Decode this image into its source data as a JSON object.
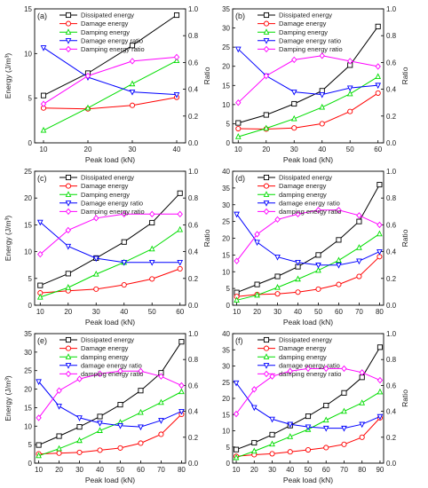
{
  "chart_data": [
    {
      "type": "line",
      "panel_label": "(a)",
      "xlabel": "Peak load (kN)",
      "ylabel": "Energy (J/m³)",
      "y2label": "Ratio",
      "x": [
        10,
        20,
        30,
        40
      ],
      "xlim": [
        8,
        42
      ],
      "xticks": [
        10,
        20,
        30,
        40
      ],
      "ylim": [
        0,
        15
      ],
      "yticks": [
        0,
        5,
        10,
        15
      ],
      "y2lim": [
        0,
        1.0
      ],
      "y2ticks": [
        0.0,
        0.2,
        0.4,
        0.6,
        0.8,
        1.0
      ],
      "legend_position": "top-left",
      "series": [
        {
          "name": "Dissipated energy",
          "color": "#000000",
          "marker": "square",
          "axis": "left",
          "values": [
            5.3,
            7.8,
            10.9,
            14.3
          ]
        },
        {
          "name": "Damage energy",
          "color": "#ff0000",
          "marker": "circle",
          "axis": "left",
          "values": [
            3.9,
            3.8,
            4.2,
            5.1
          ]
        },
        {
          "name": "Damping energy",
          "color": "#00dd00",
          "marker": "triangle-up",
          "axis": "left",
          "values": [
            1.4,
            3.9,
            6.6,
            9.2
          ]
        },
        {
          "name": "Damage energy ratio",
          "color": "#0000ff",
          "marker": "triangle-down",
          "axis": "right",
          "values": [
            0.71,
            0.49,
            0.38,
            0.36
          ]
        },
        {
          "name": "Damping energy ratio",
          "color": "#ff00ff",
          "marker": "diamond",
          "axis": "right",
          "values": [
            0.29,
            0.5,
            0.61,
            0.64
          ]
        }
      ]
    },
    {
      "type": "line",
      "panel_label": "(b)",
      "xlabel": "Peak load (kN)",
      "ylabel": "",
      "y2label": "Ratio",
      "x": [
        10,
        20,
        30,
        40,
        50,
        60
      ],
      "xlim": [
        8,
        62
      ],
      "xticks": [
        10,
        20,
        30,
        40,
        50,
        60
      ],
      "ylim": [
        0,
        35
      ],
      "yticks": [
        0,
        5,
        10,
        15,
        20,
        25,
        30,
        35
      ],
      "y2lim": [
        0,
        1.0
      ],
      "y2ticks": [
        0.0,
        0.2,
        0.4,
        0.6,
        0.8,
        1.0
      ],
      "legend_position": "top-left",
      "series": [
        {
          "name": "Dissipated energy",
          "color": "#000000",
          "marker": "square",
          "axis": "left",
          "values": [
            5.2,
            7.3,
            10.2,
            13.6,
            20.3,
            30.4
          ]
        },
        {
          "name": "Damage energy",
          "color": "#ff0000",
          "marker": "circle",
          "axis": "left",
          "values": [
            3.7,
            3.6,
            3.9,
            5.0,
            8.2,
            13.0
          ]
        },
        {
          "name": "Damping energy",
          "color": "#00dd00",
          "marker": "triangle-up",
          "axis": "left",
          "values": [
            1.6,
            3.8,
            6.3,
            9.3,
            12.8,
            17.3
          ]
        },
        {
          "name": "Damage energy ratio",
          "color": "#0000ff",
          "marker": "triangle-down",
          "axis": "right",
          "values": [
            0.7,
            0.5,
            0.38,
            0.36,
            0.41,
            0.43
          ]
        },
        {
          "name": "Damping energy ratio",
          "color": "#ff00ff",
          "marker": "diamond",
          "axis": "right",
          "values": [
            0.3,
            0.5,
            0.62,
            0.65,
            0.61,
            0.57
          ]
        }
      ]
    },
    {
      "type": "line",
      "panel_label": "(c)",
      "xlabel": "Peak load (kN)",
      "ylabel": "Energy (J/m³)",
      "y2label": "Ratio",
      "x": [
        10,
        20,
        30,
        40,
        50,
        60
      ],
      "xlim": [
        8,
        62
      ],
      "xticks": [
        10,
        20,
        30,
        40,
        50,
        60
      ],
      "ylim": [
        0,
        25
      ],
      "yticks": [
        0,
        5,
        10,
        15,
        20,
        25
      ],
      "y2lim": [
        0,
        1.0
      ],
      "y2ticks": [
        0.0,
        0.2,
        0.4,
        0.6,
        0.8,
        1.0
      ],
      "legend_position": "top-left",
      "series": [
        {
          "name": "Dissipated energy",
          "color": "#000000",
          "marker": "square",
          "axis": "left",
          "values": [
            3.7,
            5.9,
            8.8,
            11.8,
            15.4,
            20.9
          ]
        },
        {
          "name": "Damage energy",
          "color": "#ff0000",
          "marker": "circle",
          "axis": "left",
          "values": [
            2.3,
            2.7,
            3.0,
            3.8,
            4.9,
            6.8
          ]
        },
        {
          "name": "Damping energy",
          "color": "#00dd00",
          "marker": "triangle-up",
          "axis": "left",
          "values": [
            1.5,
            3.3,
            5.8,
            8.0,
            10.5,
            14.1
          ]
        },
        {
          "name": "Damage energy ratio",
          "color": "#0000ff",
          "marker": "triangle-down",
          "axis": "right",
          "values": [
            0.62,
            0.44,
            0.35,
            0.32,
            0.32,
            0.32
          ]
        },
        {
          "name": "Damping energy ratio",
          "color": "#ff00ff",
          "marker": "diamond",
          "axis": "right",
          "values": [
            0.38,
            0.56,
            0.65,
            0.68,
            0.68,
            0.68
          ]
        }
      ]
    },
    {
      "type": "line",
      "panel_label": "(d)",
      "xlabel": "Peak load (kN)",
      "ylabel": "",
      "y2label": "Ratio",
      "x": [
        10,
        20,
        30,
        40,
        50,
        60,
        70,
        80
      ],
      "xlim": [
        8,
        82
      ],
      "xticks": [
        10,
        20,
        30,
        40,
        50,
        60,
        70,
        80
      ],
      "ylim": [
        0,
        40
      ],
      "yticks": [
        0,
        5,
        10,
        15,
        20,
        25,
        30,
        35,
        40
      ],
      "y2lim": [
        0,
        1.0
      ],
      "y2ticks": [
        0.0,
        0.2,
        0.4,
        0.6,
        0.8,
        1.0
      ],
      "legend_position": "top-left",
      "series": [
        {
          "name": "Dissipated energy",
          "color": "#000000",
          "marker": "square",
          "axis": "left",
          "values": [
            3.8,
            6.2,
            8.6,
            11.5,
            15.0,
            19.5,
            25.0,
            36.0
          ]
        },
        {
          "name": "Damage energy",
          "color": "#ff0000",
          "marker": "circle",
          "axis": "left",
          "values": [
            2.6,
            3.2,
            3.4,
            3.9,
            4.8,
            6.2,
            8.6,
            14.5
          ]
        },
        {
          "name": "damping energy",
          "color": "#00dd00",
          "marker": "triangle-up",
          "axis": "left",
          "values": [
            1.5,
            3.0,
            5.3,
            7.8,
            10.4,
            13.4,
            17.2,
            21.3
          ]
        },
        {
          "name": "damage energy ratio",
          "color": "#0000ff",
          "marker": "triangle-down",
          "axis": "right",
          "values": [
            0.68,
            0.47,
            0.36,
            0.32,
            0.3,
            0.3,
            0.33,
            0.4
          ]
        },
        {
          "name": "damping energy ratio",
          "color": "#ff00ff",
          "marker": "diamond",
          "axis": "right",
          "values": [
            0.33,
            0.53,
            0.64,
            0.68,
            0.71,
            0.71,
            0.67,
            0.6
          ]
        }
      ]
    },
    {
      "type": "line",
      "panel_label": "(e)",
      "xlabel": "Peak load (kN)",
      "ylabel": "Energy (J/m³)",
      "y2label": "",
      "x": [
        10,
        20,
        30,
        40,
        50,
        60,
        70,
        80
      ],
      "xlim": [
        8,
        82
      ],
      "xticks": [
        10,
        20,
        30,
        40,
        50,
        60,
        70,
        80
      ],
      "ylim": [
        0,
        35
      ],
      "yticks": [
        0,
        5,
        10,
        15,
        20,
        25,
        30,
        35
      ],
      "y2lim": [
        0,
        1.0
      ],
      "y2ticks": [
        0.0,
        0.2,
        0.4,
        0.6,
        0.8,
        1.0
      ],
      "legend_position": "top-left",
      "series": [
        {
          "name": "Dissipated energy",
          "color": "#000000",
          "marker": "square",
          "axis": "left",
          "values": [
            4.9,
            7.3,
            9.8,
            12.6,
            15.8,
            19.6,
            24.4,
            32.8
          ]
        },
        {
          "name": "Damage energy",
          "color": "#ff0000",
          "marker": "circle",
          "axis": "left",
          "values": [
            2.5,
            2.7,
            2.9,
            3.5,
            4.1,
            5.4,
            7.8,
            13.2
          ]
        },
        {
          "name": "damping energy",
          "color": "#00dd00",
          "marker": "triangle-up",
          "axis": "left",
          "values": [
            2.0,
            3.9,
            6.1,
            8.8,
            11.0,
            13.7,
            16.4,
            19.3
          ]
        },
        {
          "name": "damage energy ratio",
          "color": "#0000ff",
          "marker": "triangle-down",
          "axis": "right",
          "values": [
            0.63,
            0.44,
            0.35,
            0.31,
            0.29,
            0.28,
            0.33,
            0.4
          ]
        },
        {
          "name": "damping energy ratio",
          "color": "#ff00ff",
          "marker": "diamond",
          "axis": "right",
          "values": [
            0.35,
            0.56,
            0.65,
            0.69,
            0.71,
            0.71,
            0.67,
            0.6
          ]
        }
      ]
    },
    {
      "type": "line",
      "panel_label": "(f)",
      "xlabel": "Peak load (kN)",
      "ylabel": "",
      "y2label": "Ratio",
      "x": [
        10,
        20,
        30,
        40,
        50,
        60,
        70,
        80,
        90
      ],
      "xlim": [
        8,
        92
      ],
      "xticks": [
        10,
        20,
        30,
        40,
        50,
        60,
        70,
        80,
        90
      ],
      "ylim": [
        0,
        40
      ],
      "yticks": [
        0,
        5,
        10,
        15,
        20,
        25,
        30,
        35,
        40
      ],
      "y2lim": [
        0,
        1.0
      ],
      "y2ticks": [
        0.0,
        0.2,
        0.4,
        0.6,
        0.8,
        1.0
      ],
      "legend_position": "top-left",
      "series": [
        {
          "name": "Dissipated energy",
          "color": "#000000",
          "marker": "square",
          "axis": "left",
          "values": [
            4.2,
            6.3,
            8.8,
            11.6,
            14.5,
            17.8,
            21.7,
            26.5,
            35.8
          ]
        },
        {
          "name": "Damage energy",
          "color": "#ff0000",
          "marker": "circle",
          "axis": "left",
          "values": [
            2.1,
            2.6,
            2.9,
            3.5,
            4.1,
            4.8,
            5.8,
            8.0,
            14.0
          ]
        },
        {
          "name": "damping energy",
          "color": "#00dd00",
          "marker": "triangle-up",
          "axis": "left",
          "values": [
            1.7,
            3.7,
            5.9,
            8.2,
            10.4,
            13.3,
            16.0,
            18.6,
            22.0
          ]
        },
        {
          "name": "damage energy ratio",
          "color": "#0000ff",
          "marker": "triangle-down",
          "axis": "right",
          "values": [
            0.62,
            0.43,
            0.34,
            0.3,
            0.28,
            0.27,
            0.27,
            0.3,
            0.36
          ]
        },
        {
          "name": "damping energy ratio",
          "color": "#ff00ff",
          "marker": "diamond",
          "axis": "right",
          "values": [
            0.38,
            0.57,
            0.67,
            0.71,
            0.73,
            0.73,
            0.73,
            0.7,
            0.64
          ]
        }
      ]
    }
  ]
}
